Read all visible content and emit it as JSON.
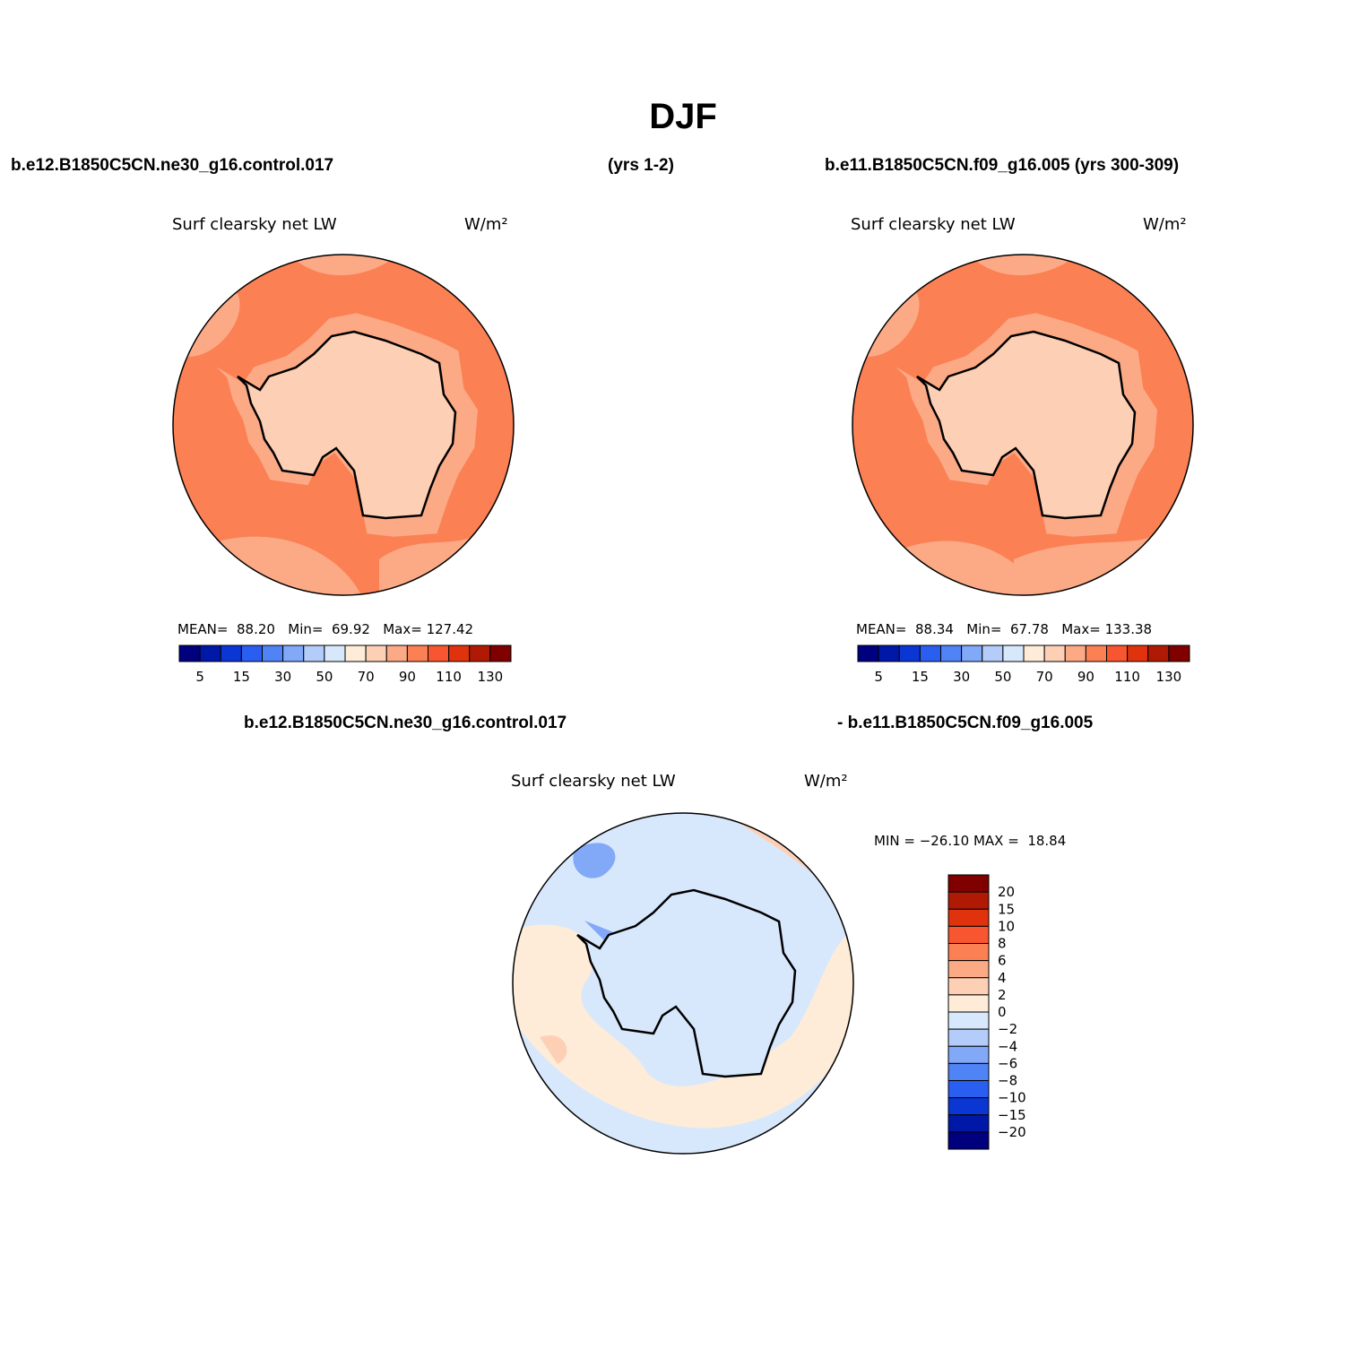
{
  "title": "DJF",
  "header": {
    "left": "b.e12.B1850C5CN.ne30_g16.control.017",
    "middle": "(yrs 1-2)",
    "right": "b.e11.B1850C5CN.f09_g16.005 (yrs 300-309)"
  },
  "diff_header": {
    "left": "b.e12.B1850C5CN.ne30_g16.control.017",
    "right": "- b.e11.B1850C5CN.f09_g16.005"
  },
  "panels": [
    {
      "variable": "Surf clearsky net LW",
      "units": "W/m²",
      "stats": "MEAN=  88.20   Min=  69.92   Max= 127.42"
    },
    {
      "variable": "Surf clearsky net LW",
      "units": "W/m²",
      "stats": "MEAN=  88.34   Min=  67.78   Max= 133.38"
    },
    {
      "variable": "Surf clearsky net LW",
      "units": "W/m²",
      "stats": "MIN = −26.10 MAX =  18.84"
    }
  ],
  "colorbar_abs": {
    "colors": [
      "#00007f",
      "#0018a8",
      "#0a36d4",
      "#2a5ef0",
      "#4f83f6",
      "#82a8f8",
      "#b4ccfa",
      "#d8e8fc",
      "#feecd8",
      "#fdd0b6",
      "#fcaa86",
      "#fb8054",
      "#f85630",
      "#e0320c",
      "#b01a04",
      "#800000"
    ],
    "labels": [
      "5",
      "15",
      "30",
      "50",
      "70",
      "90",
      "110",
      "130"
    ]
  },
  "colorbar_diff": {
    "colors": [
      "#800000",
      "#b01a04",
      "#e0320c",
      "#f85630",
      "#fb8054",
      "#fcaa86",
      "#fdd0b6",
      "#feecd8",
      "#d8e8fc",
      "#b4ccfa",
      "#82a8f8",
      "#4f83f6",
      "#2a5ef0",
      "#0a36d4",
      "#0018a8",
      "#00007f"
    ],
    "labels": [
      "20",
      "15",
      "10",
      "8",
      "6",
      "4",
      "2",
      "0",
      "−2",
      "−4",
      "−6",
      "−8",
      "−10",
      "−15",
      "−20"
    ]
  }
}
